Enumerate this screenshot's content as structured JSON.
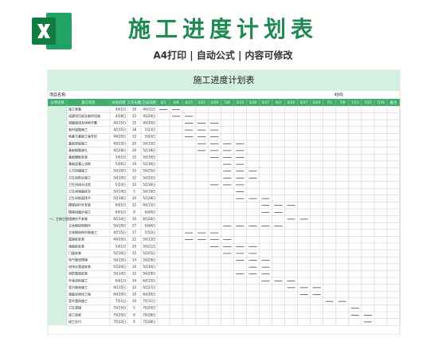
{
  "banner": {
    "title": "施工进度计划表",
    "subtitle": "A4打印 | 自动公式 | 内容可修改"
  },
  "sheet": {
    "title": "施工进度计划表",
    "project_label": "项目名称:",
    "time_label": "时间:",
    "headers": [
      "分项名称",
      "施工项目",
      "开始日期",
      "工作天数",
      "完成日期"
    ],
    "dates": [
      "4/1",
      "4/8",
      "4/15",
      "4/22",
      "4/29",
      "5/6",
      "5/13",
      "5/20",
      "5/27",
      "6/3",
      "6/10",
      "6/17",
      "6/24",
      "7/1",
      "7/8",
      "7/15",
      "7/22",
      "7/29"
    ],
    "remark_header": "备注",
    "rows": [
      [
        null,
        "施工准备",
        "4月1日",
        10,
        "4月11日"
      ],
      [
        null,
        "组建项目部及临时设施",
        "4月8日",
        12,
        "4月20日"
      ],
      [
        null,
        "测量放线及场地平整",
        "4月15日",
        15,
        "4月30日"
      ],
      [
        null,
        "临时道路施工",
        "4月15日",
        18,
        "5月3日"
      ],
      [
        null,
        "地基与基础工程开挖",
        "4月20日",
        15,
        "5月5日"
      ],
      [
        null,
        "基础垫层施工",
        "4月25日",
        20,
        "5月15日"
      ],
      [
        null,
        "基础钢筋绑扎",
        "4月28日",
        20,
        "5月18日"
      ],
      [
        null,
        "基础模板安装",
        "5月1日",
        15,
        "5月16日"
      ],
      [
        null,
        "基础混凝土浇筑",
        "5月6日",
        10,
        "5月16日"
      ],
      [
        null,
        "土方回填施工",
        "5月10日",
        15,
        "5月25日"
      ],
      [
        null,
        "卫生间防水施工",
        "5月10日",
        12,
        "5月22日"
      ],
      [
        null,
        "卫生间闭水试验",
        "5月4日",
        12,
        "5月16日"
      ],
      [
        null,
        "卫生间墙面抹灰",
        "5月14日",
        5,
        "5月19日"
      ],
      [
        null,
        "卫生间地面找平",
        "5月18日",
        10,
        "5月28日"
      ],
      [
        null,
        "楼梯间栏杆安装",
        "6月1日",
        12,
        "6月13日"
      ],
      [
        null,
        "楼梯间踏步施工",
        "6月1日",
        8,
        "6月9日"
      ],
      [
        "一、主体工程",
        "楼梯扶手安装",
        "6月10日",
        10,
        "6月20日"
      ],
      [
        null,
        "主体钢结构制作",
        "5月10日",
        27,
        "6月6日"
      ],
      [
        null,
        "主体钢结构吊装施工",
        "4月15日",
        17,
        "5月2日"
      ],
      [
        null,
        "屋面板安装",
        "4月20日",
        22,
        "5月12日"
      ],
      [
        null,
        "墙面板安装",
        "5月1日",
        20,
        "5月21日"
      ],
      [
        null,
        "门窗安装",
        "5月10日",
        15,
        "5月25日"
      ],
      [
        null,
        "电气管线预埋",
        "5月15日",
        14,
        "5月29日"
      ],
      [
        null,
        "给排水管道安装",
        "5月20日",
        10,
        "5月30日"
      ],
      [
        null,
        "消防管道安装",
        "5月14日",
        15,
        "5月29日"
      ],
      [
        null,
        "外墙涂料施工",
        "6月1日",
        14,
        "6月15日"
      ],
      [
        null,
        "室内装饰施工",
        "6月15日",
        12,
        "6月27日"
      ],
      [
        null,
        "道路及绿化工程",
        "6月20日",
        10,
        "6月30日"
      ],
      [
        null,
        "室外管网施工",
        "7月1日",
        10,
        "7月11日"
      ],
      [
        null,
        "卫生清理",
        "7月15日",
        5,
        "7月20日"
      ],
      [
        null,
        "竣工验收",
        "7月20日",
        8,
        "7月28日"
      ],
      [
        null,
        "竣工交付",
        "7月22日",
        6,
        "7月28日"
      ]
    ]
  }
}
